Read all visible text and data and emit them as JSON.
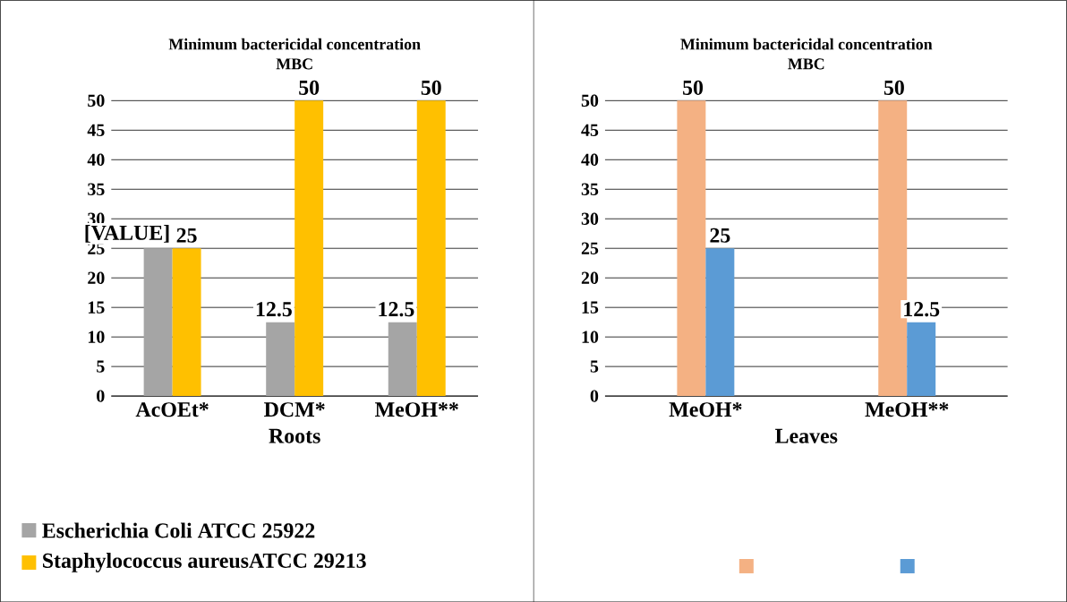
{
  "chart_data": [
    {
      "type": "bar",
      "title": "Minimum bactericidal concentration",
      "subtitle": "MBC",
      "xlabel": "Roots",
      "categories": [
        "AcOEt*",
        "DCM*",
        "MeOH**"
      ],
      "series": [
        {
          "name": "Escherichia Coli ATCC 25922",
          "color": "#a5a5a5",
          "values": [
            25,
            12.5,
            12.5
          ],
          "value_labels": [
            "[VALUE]",
            "12.5",
            "12.5"
          ]
        },
        {
          "name": "Staphylococcus aureusATCC 29213",
          "color": "#ffc000",
          "values": [
            25,
            50,
            50
          ],
          "value_labels": [
            "25",
            "50",
            "50"
          ]
        }
      ],
      "ylim": [
        0,
        50
      ],
      "yticks": [
        0,
        5,
        10,
        15,
        20,
        25,
        30,
        35,
        40,
        45,
        50
      ],
      "grid": "y",
      "legend": "bottom"
    },
    {
      "type": "bar",
      "title": "Minimum bactericidal concentration",
      "subtitle": "MBC",
      "xlabel": "Leaves",
      "categories": [
        "MeOH*",
        "MeOH**"
      ],
      "series": [
        {
          "color": "#f4b183",
          "values": [
            50,
            50
          ],
          "value_labels": [
            "50",
            "50"
          ]
        },
        {
          "color": "#5b9bd5",
          "values": [
            25,
            12.5
          ],
          "value_labels": [
            "25",
            "12.5"
          ]
        }
      ],
      "ylim": [
        0,
        50
      ],
      "yticks": [
        0,
        5,
        10,
        15,
        20,
        25,
        30,
        35,
        40,
        45,
        50
      ],
      "grid": "y"
    }
  ]
}
